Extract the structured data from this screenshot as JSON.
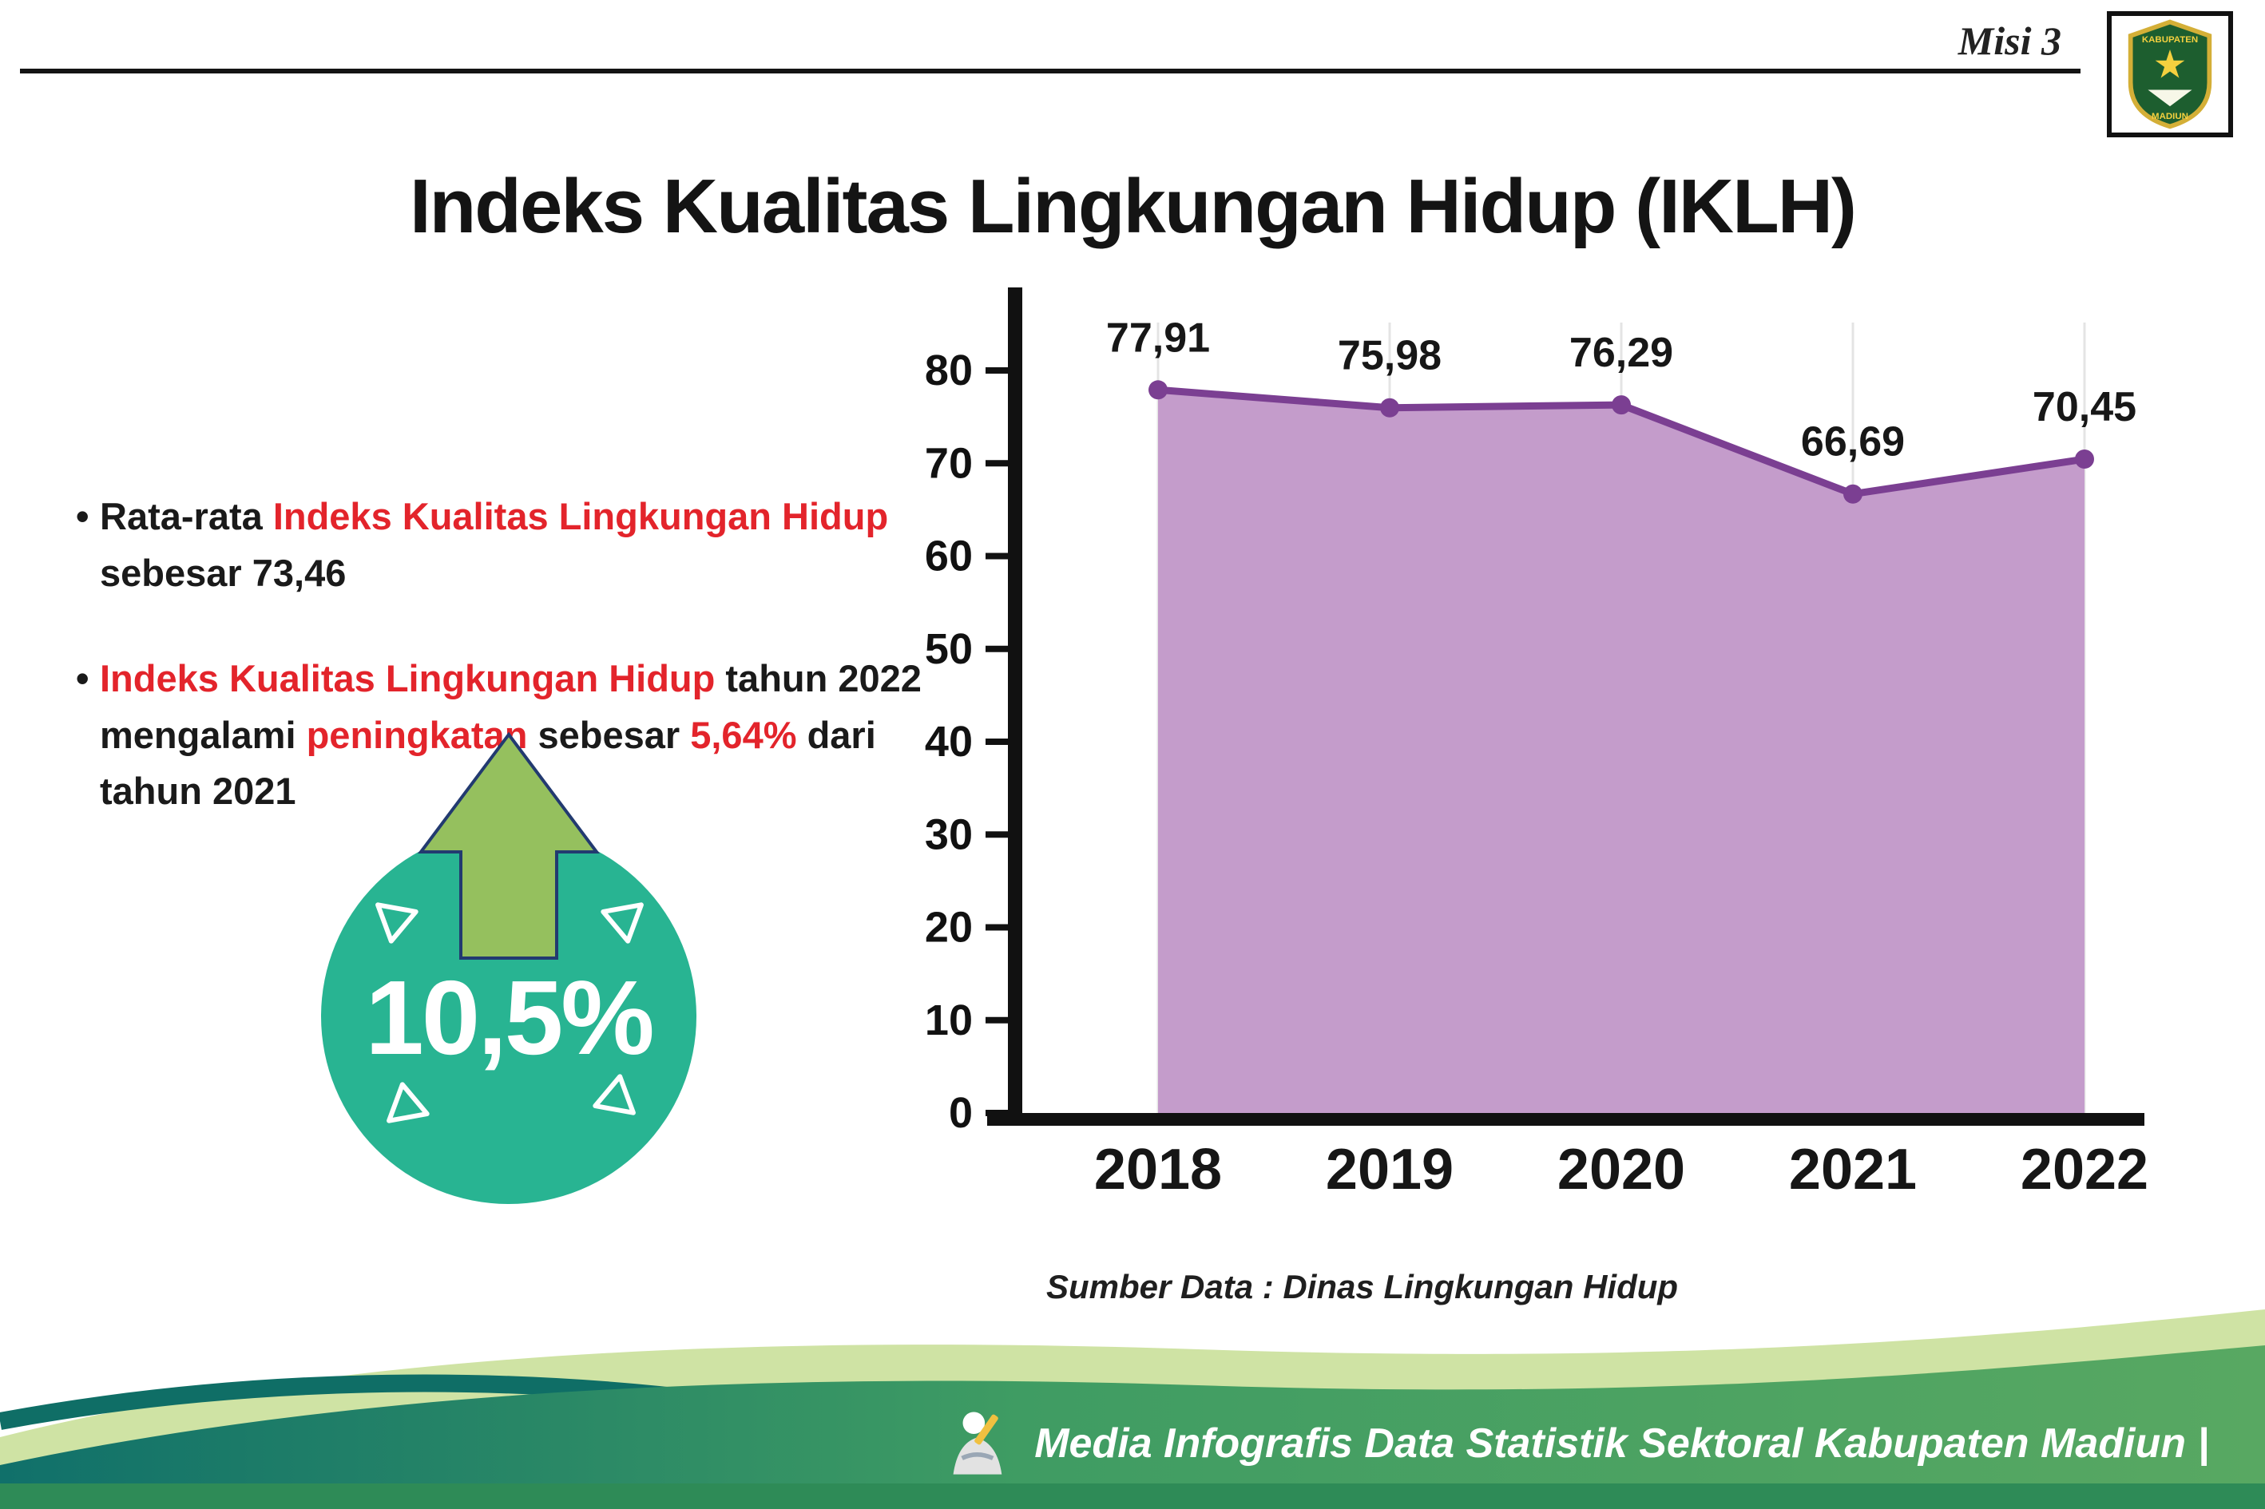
{
  "header": {
    "misi": "Misi 3",
    "title": "Indeks Kualitas Lingkungan Hidup (IKLH)"
  },
  "logo": {
    "line1": "KABUPATEN",
    "line2": "MADIUN"
  },
  "glyphs": {
    "bullet": "•"
  },
  "bullets": {
    "b1_pre": "Rata-rata ",
    "b1_red": "Indeks Kualitas Lingkungan Hidup",
    "b1_post": " sebesar 73,46",
    "b2_red1": "Indeks Kualitas Lingkungan Hidup",
    "b2_mid1": " tahun 2022 mengalami ",
    "b2_red2": "peningkatan",
    "b2_mid2": " sebesar ",
    "b2_red3": "5,64%",
    "b2_post": " dari tahun 2021"
  },
  "badge": {
    "value": "10,5%",
    "circle_color": "#28b492",
    "arrow_color": "#95c05e"
  },
  "chart_data": {
    "type": "area",
    "title": "Indeks Kualitas Lingkungan Hidup (IKLH)",
    "categories": [
      "2018",
      "2019",
      "2020",
      "2021",
      "2022"
    ],
    "values": [
      77.91,
      75.98,
      76.29,
      66.69,
      70.45
    ],
    "point_labels": [
      "77,91",
      "75,98",
      "76,29",
      "66,69",
      "70,45"
    ],
    "ylim": [
      0,
      80
    ],
    "yticks": [
      0,
      10,
      20,
      30,
      40,
      50,
      60,
      70,
      80
    ],
    "xlabel": "",
    "ylabel": "",
    "legend": "none",
    "grid": "light-vertical",
    "line_color": "#7b3f92",
    "fill_color": "#c49ccb",
    "source": "Sumber Data : Dinas Lingkungan Hidup"
  },
  "footer": {
    "text": "Media Infografis Data Statistik Sektoral Kabupaten Madiun |"
  },
  "colors": {
    "accent_red": "#e3242b",
    "teal": "#28b492",
    "purple": "#7b3f92",
    "lavender": "#c49ccb",
    "footer_dark_teal": "#10706a",
    "footer_green": "#4f9e58",
    "footer_light_green": "#cfe3a4"
  }
}
